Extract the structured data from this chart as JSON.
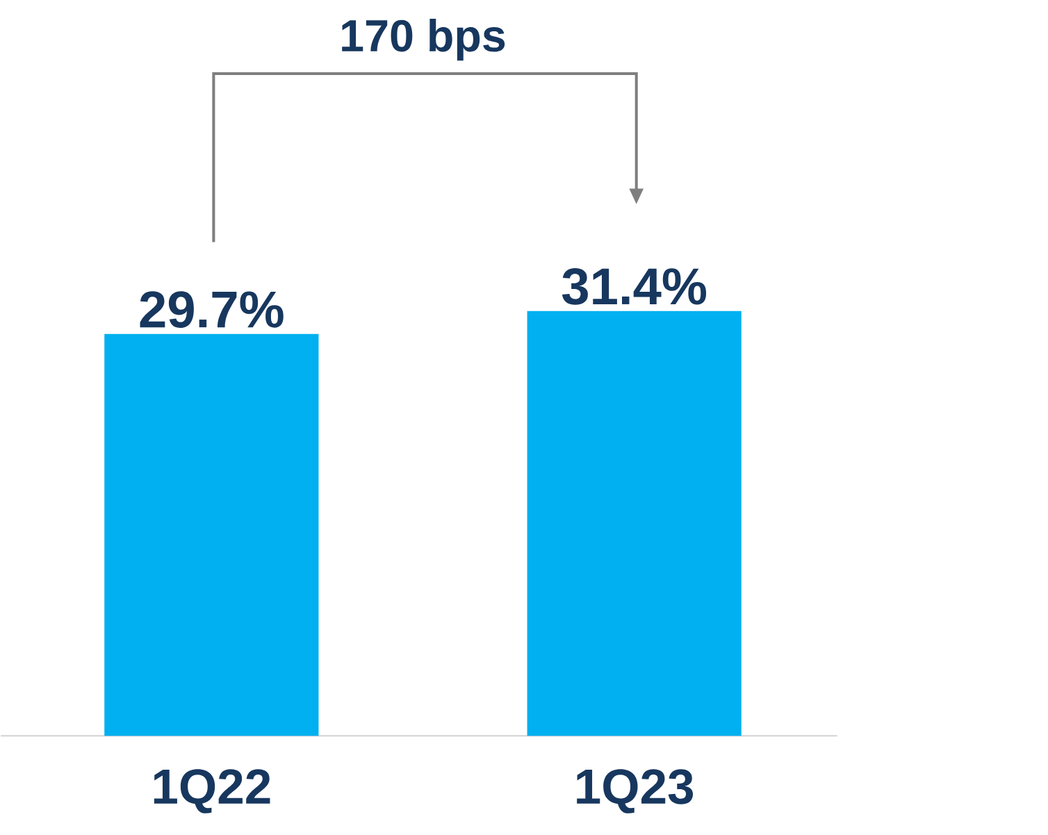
{
  "chart_data": {
    "type": "bar",
    "categories": [
      "1Q22",
      "1Q23"
    ],
    "values": [
      29.7,
      31.4
    ],
    "value_labels": [
      "29.7%",
      "31.4%"
    ],
    "color": "#00b0f0",
    "annotations": [
      "170 bps"
    ]
  }
}
